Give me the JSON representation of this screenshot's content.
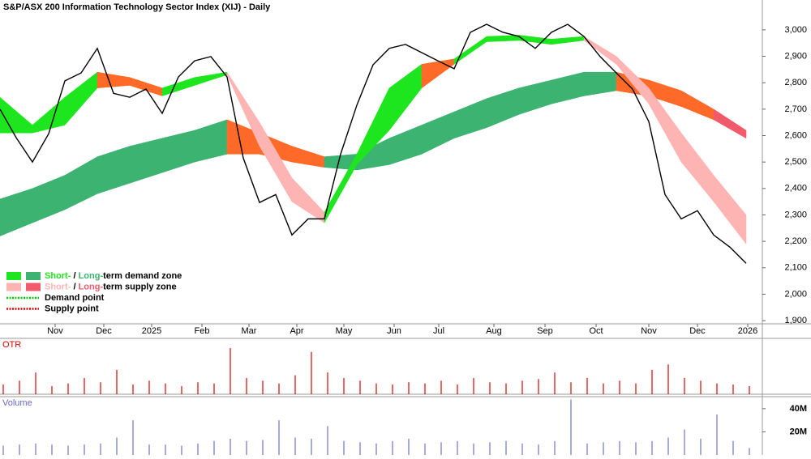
{
  "chart_data": [
    {
      "type": "price-zones",
      "title": "S&P/ASX 200 Information Technology Sector Index (XIJ) - Daily",
      "x": [
        0,
        1,
        2,
        3,
        4,
        5,
        6,
        7,
        8,
        9,
        10,
        11,
        12,
        13,
        14,
        15,
        16,
        17,
        18,
        19,
        20,
        21,
        22,
        23,
        24,
        25,
        26,
        27,
        28,
        29,
        30,
        31,
        32,
        33,
        34,
        35,
        36,
        37,
        38,
        39,
        40,
        41,
        42,
        43,
        44,
        45,
        46
      ],
      "values": [
        2700,
        2592,
        2500,
        2607,
        2807,
        2837,
        2930,
        2760,
        2745,
        2776,
        2684,
        2822,
        2883,
        2899,
        2822,
        2515,
        2347,
        2377,
        2224,
        2285,
        2285,
        2530,
        2715,
        2868,
        2930,
        2945,
        2914,
        2883,
        2853,
        2991,
        3021,
        2991,
        2975,
        2930,
        2991,
        3021,
        2975,
        2899,
        2837,
        2776,
        2653,
        2377,
        2285,
        2316,
        2224,
        2178,
        2117
      ],
      "color": "#000000",
      "zone_x": [
        0,
        2,
        4,
        6,
        8,
        10,
        12,
        14,
        16,
        18,
        20,
        22,
        24,
        26,
        28,
        30,
        32,
        34,
        36,
        38,
        40,
        42,
        44,
        46
      ],
      "zones": [
        {
          "upper": [
            2745,
            2640,
            2745,
            2840,
            2820,
            2780,
            2820,
            2840,
            2650,
            2440,
            2310,
            2530,
            2780,
            2870,
            2890,
            2975,
            2980,
            2965,
            2975,
            2900,
            2780,
            2610,
            2450,
            2300
          ],
          "lower": [
            2610,
            2610,
            2640,
            2780,
            2790,
            2750,
            2790,
            2830,
            2560,
            2350,
            2270,
            2490,
            2620,
            2780,
            2870,
            2955,
            2960,
            2945,
            2960,
            2870,
            2720,
            2500,
            2350,
            2190
          ],
          "colors": [
            "#1ee61e",
            "#1ee61e",
            "#1ee61e",
            "#ff6a28",
            "#ff6a28",
            "#1ee61e",
            "#1ee61e",
            "#ffb4b4",
            "#ffb4b4",
            "#ffb4b4",
            "#1ee61e",
            "#1ee61e",
            "#1ee61e",
            "#ff6a28",
            "#1ee61e",
            "#1ee61e",
            "#1ee61e",
            "#1ee61e",
            "#ffb4b4",
            "#ffb4b4",
            "#ffb4b4",
            "#ffb4b4",
            "#ffb4b4"
          ]
        },
        {
          "upper": [
            2360,
            2400,
            2450,
            2520,
            2560,
            2590,
            2620,
            2660,
            2610,
            2560,
            2520,
            2530,
            2590,
            2640,
            2690,
            2740,
            2780,
            2810,
            2840,
            2840,
            2810,
            2770,
            2700,
            2620
          ],
          "lower": [
            2220,
            2270,
            2320,
            2380,
            2420,
            2460,
            2500,
            2530,
            2530,
            2500,
            2480,
            2470,
            2490,
            2530,
            2590,
            2630,
            2680,
            2720,
            2750,
            2770,
            2750,
            2710,
            2660,
            2590
          ],
          "colors": [
            "#3cb371",
            "#3cb371",
            "#3cb371",
            "#3cb371",
            "#3cb371",
            "#3cb371",
            "#3cb371",
            "#ff6a28",
            "#ff6a28",
            "#ff6a28",
            "#3cb371",
            "#3cb371",
            "#3cb371",
            "#3cb371",
            "#3cb371",
            "#3cb371",
            "#3cb371",
            "#3cb371",
            "#3cb371",
            "#ff6a28",
            "#ff6a28",
            "#ff6a28",
            "#f05a6a"
          ]
        }
      ],
      "xlim": [
        0,
        47
      ],
      "xticks": [
        {
          "value": 3.4,
          "label": "Nov"
        },
        {
          "value": 6.4,
          "label": "Dec"
        },
        {
          "value": 9.35,
          "label": "2025"
        },
        {
          "value": 12.45,
          "label": "Feb"
        },
        {
          "value": 15.35,
          "label": "Mar"
        },
        {
          "value": 18.3,
          "label": "Apr"
        },
        {
          "value": 21.2,
          "label": "May"
        },
        {
          "value": 24.3,
          "label": "Jun"
        },
        {
          "value": 27.05,
          "label": "Jul"
        },
        {
          "value": 30.45,
          "label": "Aug"
        },
        {
          "value": 33.6,
          "label": "Sep"
        },
        {
          "value": 36.75,
          "label": "Oct"
        },
        {
          "value": 40,
          "label": "Nov"
        },
        {
          "value": 43,
          "label": "Dec"
        },
        {
          "value": 46.1,
          "label": "2026"
        }
      ],
      "ylim": [
        1888,
        3113
      ],
      "yticks": [
        {
          "value": 1900,
          "label": "1,900"
        },
        {
          "value": 2000,
          "label": "2,000"
        },
        {
          "value": 2100,
          "label": "2,100"
        },
        {
          "value": 2200,
          "label": "2,200"
        },
        {
          "value": 2300,
          "label": "2,300"
        },
        {
          "value": 2400,
          "label": "2,400"
        },
        {
          "value": 2500,
          "label": "2,500"
        },
        {
          "value": 2600,
          "label": "2,600"
        },
        {
          "value": 2700,
          "label": "2,700"
        },
        {
          "value": 2800,
          "label": "2,800"
        },
        {
          "value": 2900,
          "label": "2,900"
        },
        {
          "value": 3000,
          "label": "3,000"
        }
      ],
      "legend": [
        {
          "swatches": [
            "#1ee61e",
            "#3cb371"
          ],
          "parts": [
            {
              "text": "Short-",
              "color": "#1ee61e"
            },
            {
              "text": " / ",
              "color": "#000000"
            },
            {
              "text": "Long-",
              "color": "#3cb371"
            },
            {
              "text": "term demand zone",
              "color": "#000000"
            }
          ]
        },
        {
          "swatches": [
            "#ffb4b4",
            "#f05a6a"
          ],
          "parts": [
            {
              "text": "Short-",
              "color": "#ffb4b4"
            },
            {
              "text": " / ",
              "color": "#000000"
            },
            {
              "text": "Long-",
              "color": "#f05a6a"
            },
            {
              "text": "term supply zone",
              "color": "#000000"
            }
          ]
        },
        {
          "line": "#00cc00",
          "parts": [
            {
              "text": "Demand point",
              "color": "#000000"
            }
          ]
        },
        {
          "line": "#dd0000",
          "parts": [
            {
              "text": "Supply point",
              "color": "#000000"
            }
          ]
        }
      ]
    },
    {
      "type": "bar",
      "label": "OTR",
      "label_color": "#dd0000",
      "color": "#dd0000",
      "values": [
        18,
        25,
        40,
        15,
        20,
        30,
        22,
        45,
        18,
        25,
        20,
        15,
        22,
        20,
        85,
        30,
        25,
        20,
        35,
        78,
        40,
        30,
        25,
        20,
        18,
        22,
        20,
        25,
        18,
        30,
        22,
        20,
        25,
        28,
        40,
        22,
        30,
        20,
        25,
        20,
        45,
        55,
        30,
        25,
        20,
        18,
        15
      ],
      "ylim": [
        0,
        100
      ]
    },
    {
      "type": "bar",
      "label": "Volume",
      "label_color": "#6a6acd",
      "color": "#7070d8",
      "values": [
        8,
        9,
        10,
        9,
        8,
        9,
        10,
        15,
        30,
        9,
        9,
        8,
        10,
        12,
        14,
        12,
        13,
        30,
        15,
        14,
        25,
        12,
        11,
        10,
        12,
        14,
        10,
        11,
        12,
        10,
        11,
        12,
        10,
        9,
        12,
        48,
        10,
        11,
        12,
        11,
        12,
        15,
        22,
        14,
        35,
        12,
        6
      ],
      "ylim": [
        0,
        49
      ],
      "yticks": [
        {
          "value": 20,
          "label": "20M"
        },
        {
          "value": 40,
          "label": "40M"
        }
      ]
    }
  ]
}
